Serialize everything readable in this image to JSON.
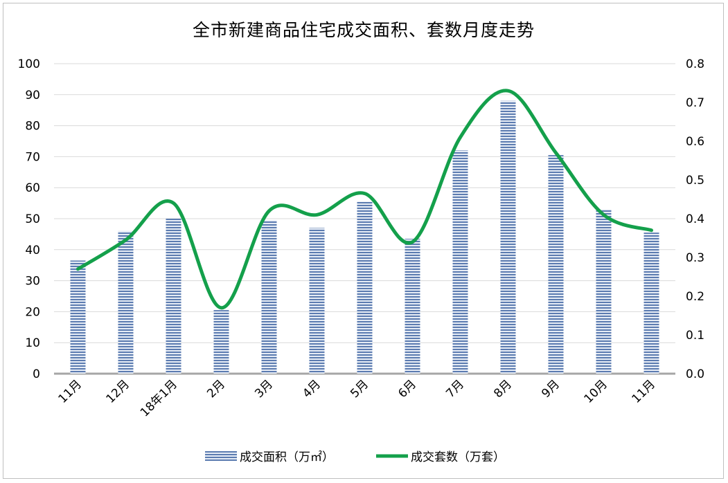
{
  "chart_data": {
    "type": "bar+line",
    "title": "全市新建商品住宅成交面积、套数月度走势",
    "categories": [
      "11月",
      "12月",
      "18年1月",
      "2月",
      "3月",
      "4月",
      "5月",
      "6月",
      "7月",
      "8月",
      "9月",
      "10月",
      "11月"
    ],
    "series": [
      {
        "name": "成交面积（万㎡）",
        "type": "bar",
        "axis": "left",
        "values": [
          36.5,
          46,
          50,
          20.5,
          49.5,
          47,
          55.5,
          43.5,
          72,
          88,
          70.5,
          53,
          45.5
        ]
      },
      {
        "name": "成交套数（万套）",
        "type": "line",
        "axis": "right",
        "values": [
          0.27,
          0.345,
          0.44,
          0.17,
          0.42,
          0.41,
          0.465,
          0.34,
          0.61,
          0.73,
          0.57,
          0.41,
          0.37
        ]
      }
    ],
    "y_left": {
      "min": 0,
      "max": 100,
      "step": 10,
      "ticks": [
        "0",
        "10",
        "20",
        "30",
        "40",
        "50",
        "60",
        "70",
        "80",
        "90",
        "100"
      ]
    },
    "y_right": {
      "min": 0,
      "max": 0.8,
      "step": 0.1,
      "ticks": [
        "0.0",
        "0.1",
        "0.2",
        "0.3",
        "0.4",
        "0.5",
        "0.6",
        "0.7",
        "0.8"
      ]
    },
    "grid": true,
    "legend_position": "bottom",
    "colors": {
      "bar": "#5b7bb0",
      "bar_stripe": "#e6ecf5",
      "line": "#14a04b",
      "grid": "#d9d9d9",
      "axis": "#a6a6a6"
    }
  }
}
